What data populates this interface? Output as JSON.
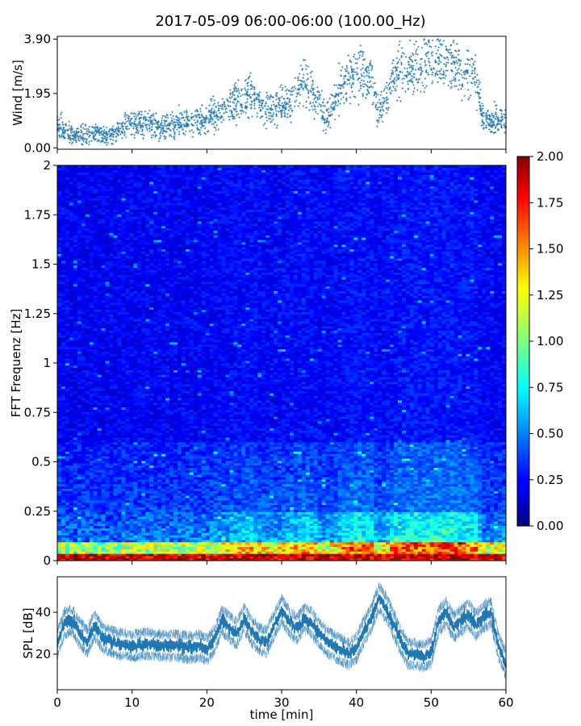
{
  "figure_title": "2017-05-09 06:00-06:00 (100.00_Hz)",
  "chart_data": [
    {
      "id": "wind",
      "type": "scatter",
      "ylabel": "Wind [m/s]",
      "xlim": [
        0,
        60
      ],
      "ylim": [
        -0.05,
        4.0
      ],
      "yticks": [
        "0.00",
        "1.95",
        "3.90"
      ],
      "ytick_values": [
        0.0,
        1.95,
        3.9
      ],
      "xtick_values": [
        0,
        10,
        20,
        30,
        40,
        50,
        60
      ],
      "color": "#1f77b4",
      "trend": [
        [
          0,
          0.9
        ],
        [
          2,
          0.4
        ],
        [
          5,
          0.55
        ],
        [
          7,
          0.4
        ],
        [
          10,
          0.9
        ],
        [
          14,
          0.8
        ],
        [
          18,
          0.9
        ],
        [
          20,
          1.0
        ],
        [
          23,
          1.6
        ],
        [
          26,
          1.9
        ],
        [
          28,
          1.3
        ],
        [
          31,
          1.6
        ],
        [
          33,
          2.4
        ],
        [
          35,
          1.6
        ],
        [
          36,
          1.0
        ],
        [
          38,
          2.2
        ],
        [
          40,
          2.8
        ],
        [
          42,
          2.5
        ],
        [
          43,
          1.2
        ],
        [
          45,
          2.6
        ],
        [
          47,
          2.9
        ],
        [
          49,
          3.0
        ],
        [
          51,
          3.1
        ],
        [
          53,
          3.0
        ],
        [
          56,
          2.5
        ],
        [
          57,
          0.9
        ],
        [
          60,
          1.0
        ]
      ]
    },
    {
      "id": "spectrogram",
      "type": "heatmap",
      "ylabel": "FFT Frequenz [Hz]",
      "xlim": [
        0,
        60
      ],
      "ylim": [
        0,
        2
      ],
      "yticks": [
        "0",
        "0.25",
        "0.5",
        "0.75",
        "1",
        "1.25",
        "1.5",
        "1.75",
        "2"
      ],
      "ytick_values": [
        0,
        0.25,
        0.5,
        0.75,
        1,
        1.25,
        1.5,
        1.75,
        2
      ],
      "colormap": "jet",
      "clim": [
        0.0,
        2.0
      ],
      "colorbar_ticks": [
        "0.00",
        "0.25",
        "0.50",
        "0.75",
        "1.00",
        "1.25",
        "1.50",
        "1.75",
        "2.00"
      ],
      "colorbar_values": [
        0.0,
        0.25,
        0.5,
        0.75,
        1.0,
        1.25,
        1.5,
        1.75,
        2.0
      ]
    },
    {
      "id": "spl",
      "type": "line",
      "ylabel": "SPL [dB]",
      "xlabel": "time [min]",
      "xlim": [
        0,
        60
      ],
      "ylim": [
        3,
        57
      ],
      "yticks": [
        "20",
        "40"
      ],
      "ytick_values": [
        20,
        40
      ],
      "xticks": [
        "0",
        "10",
        "20",
        "30",
        "40",
        "50",
        "60"
      ],
      "xtick_values": [
        0,
        10,
        20,
        30,
        40,
        50,
        60
      ],
      "color": "#1f77b4",
      "trend": [
        [
          0,
          25
        ],
        [
          1,
          35
        ],
        [
          2,
          36
        ],
        [
          3,
          30
        ],
        [
          4,
          26
        ],
        [
          5,
          34
        ],
        [
          6,
          28
        ],
        [
          8,
          25
        ],
        [
          10,
          24
        ],
        [
          12,
          25
        ],
        [
          14,
          24
        ],
        [
          16,
          24
        ],
        [
          18,
          23
        ],
        [
          19,
          24
        ],
        [
          20,
          22
        ],
        [
          21,
          27
        ],
        [
          22,
          36
        ],
        [
          23,
          33
        ],
        [
          24,
          30
        ],
        [
          25,
          37
        ],
        [
          26,
          31
        ],
        [
          27,
          27
        ],
        [
          28,
          26
        ],
        [
          29,
          34
        ],
        [
          30,
          41
        ],
        [
          31,
          36
        ],
        [
          32,
          32
        ],
        [
          33,
          37
        ],
        [
          34,
          35
        ],
        [
          35,
          30
        ],
        [
          36,
          26
        ],
        [
          37,
          24
        ],
        [
          38,
          22
        ],
        [
          39,
          20
        ],
        [
          40,
          23
        ],
        [
          41,
          31
        ],
        [
          42,
          37
        ],
        [
          43,
          47
        ],
        [
          44,
          42
        ],
        [
          45,
          34
        ],
        [
          46,
          26
        ],
        [
          47,
          20
        ],
        [
          48,
          20
        ],
        [
          49,
          19
        ],
        [
          50,
          21
        ],
        [
          51,
          36
        ],
        [
          52,
          40
        ],
        [
          53,
          33
        ],
        [
          54,
          36
        ],
        [
          55,
          39
        ],
        [
          56,
          34
        ],
        [
          57,
          38
        ],
        [
          58,
          40
        ],
        [
          59,
          24
        ],
        [
          60,
          15
        ]
      ]
    }
  ]
}
